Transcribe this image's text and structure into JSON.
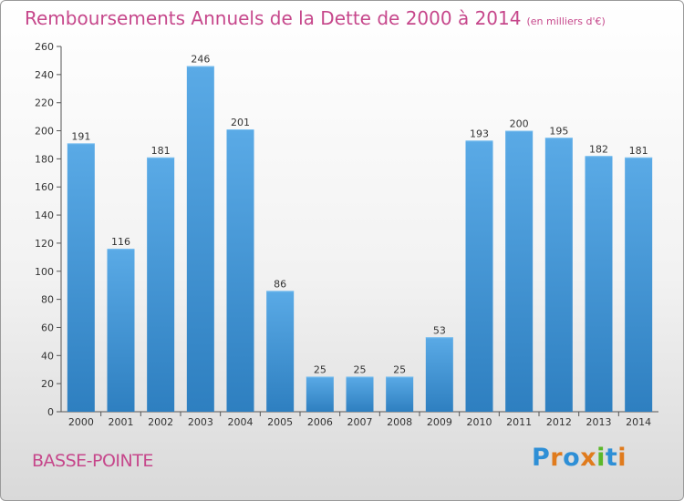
{
  "header": {
    "title": "Remboursements Annuels de la Dette de 2000 à 2014",
    "unit_note": "(en milliers d'€)"
  },
  "footer": {
    "commune": "BASSE-POINTE",
    "logo_text": "Proxiti"
  },
  "colors": {
    "title": "#c6478b",
    "bar_light": "#5aaae6",
    "bar_dark": "#2e7fc0",
    "axis": "#555555",
    "grid": "#d0d0d0",
    "logo_letters": [
      "#2e8fd6",
      "#e07b1d",
      "#2e8fd6",
      "#e07b1d",
      "#5bb82a",
      "#2e8fd6",
      "#e07b1d"
    ]
  },
  "chart_data": {
    "type": "bar",
    "title": "Remboursements Annuels de la Dette de 2000 à 2014",
    "subtitle": "(en milliers d'€)",
    "xlabel": "",
    "ylabel": "",
    "categories": [
      "2000",
      "2001",
      "2002",
      "2003",
      "2004",
      "2005",
      "2006",
      "2007",
      "2008",
      "2009",
      "2010",
      "2011",
      "2012",
      "2013",
      "2014"
    ],
    "values": [
      191,
      116,
      181,
      246,
      201,
      86,
      25,
      25,
      25,
      53,
      193,
      200,
      195,
      182,
      181
    ],
    "ylim": [
      0,
      260
    ],
    "yticks": [
      0,
      20,
      40,
      60,
      80,
      100,
      120,
      140,
      160,
      180,
      200,
      220,
      240,
      260
    ],
    "grid": false,
    "legend": "none"
  }
}
